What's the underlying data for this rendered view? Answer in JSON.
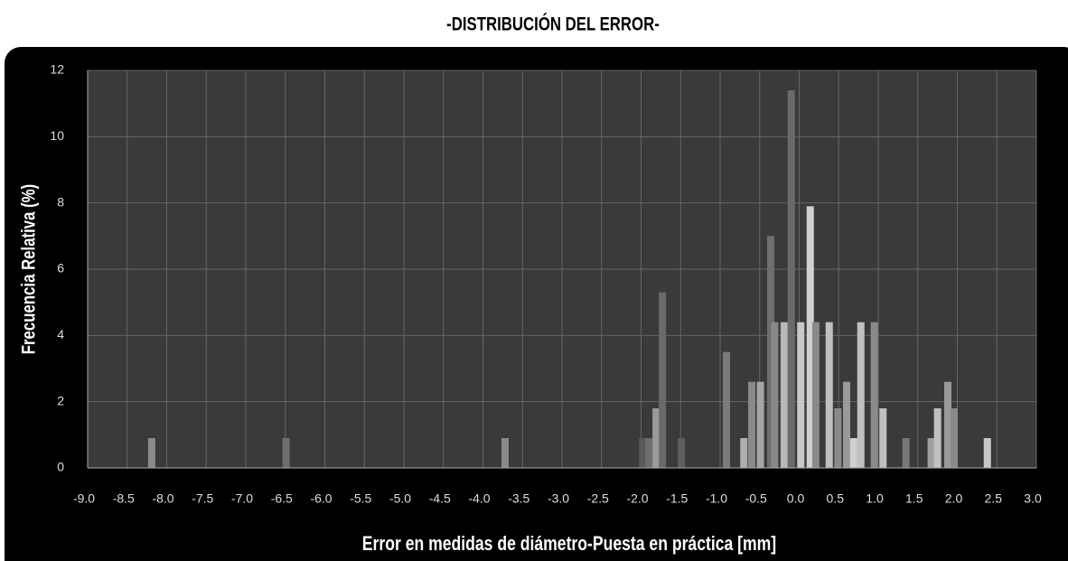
{
  "chart_data": {
    "type": "bar",
    "title": "-DISTRIBUCIÓN DEL ERROR-",
    "xlabel": "Error en medidas de diámetro-Puesta en práctica [mm]",
    "ylabel": "Frecuencia Relativa (%)",
    "x": [
      -8.19,
      -6.49,
      -3.72,
      -1.98,
      -1.9,
      -1.81,
      -1.73,
      -1.49,
      -0.92,
      -0.7,
      -0.6,
      -0.49,
      -0.36,
      -0.31,
      -0.19,
      -0.1,
      0.02,
      0.14,
      0.21,
      0.38,
      0.49,
      0.6,
      0.69,
      0.78,
      0.95,
      1.06,
      1.35,
      1.67,
      1.75,
      1.88,
      1.96,
      2.38
    ],
    "values": [
      0.9,
      0.9,
      0.9,
      0.9,
      0.9,
      1.8,
      5.3,
      0.9,
      3.5,
      0.9,
      2.6,
      2.6,
      7.0,
      4.4,
      4.4,
      11.4,
      4.4,
      7.9,
      4.4,
      4.4,
      1.8,
      2.6,
      0.9,
      4.4,
      4.4,
      1.8,
      0.9,
      0.9,
      1.8,
      2.6,
      1.8,
      0.9
    ],
    "colors": [
      "#8a8a8a",
      "#6e6e6e",
      "#8a8a8a",
      "#5a5a5a",
      "#6e6e6e",
      "#9a9a9a",
      "#6a6a6a",
      "#5f5f5f",
      "#7a7a7a",
      "#b0b0b0",
      "#8a8a8a",
      "#a5a5a5",
      "#6e6e6e",
      "#888888",
      "#b8b8b8",
      "#6a6a6a",
      "#c8c8c8",
      "#d0d0d0",
      "#8a8a8a",
      "#c0c0c0",
      "#8a8a8a",
      "#9a9a9a",
      "#d0d0d0",
      "#c0c0c0",
      "#8a8a8a",
      "#c0c0c0",
      "#777777",
      "#a0a0a0",
      "#c0c0c0",
      "#9a9a9a",
      "#8a8a8a",
      "#c8c8c8"
    ],
    "xlim": [
      -9,
      3
    ],
    "ylim": [
      0,
      12
    ],
    "xticks": [
      {
        "value": -9,
        "label": "-9.0"
      },
      -8.5,
      {
        "value": -8,
        "label": "-8.0"
      },
      -7.5,
      {
        "value": -7,
        "label": "-7.0"
      },
      -6.5,
      {
        "value": -6,
        "label": "-6.0"
      },
      -5.5,
      {
        "value": -5,
        "label": "-5.0"
      },
      -4.5,
      {
        "value": -4,
        "label": "-4.0"
      },
      -3.5,
      {
        "value": -3,
        "label": "-3.0"
      },
      -2.5,
      {
        "value": -2,
        "label": "-2.0"
      },
      -1.5,
      {
        "value": -1,
        "label": "-1.0"
      },
      -0.5,
      {
        "value": 0,
        "label": "0.0"
      },
      0.5,
      {
        "value": 1,
        "label": "1.0"
      },
      1.5,
      {
        "value": 2,
        "label": "2.0"
      },
      2.5,
      {
        "value": 3,
        "label": "3.0"
      }
    ],
    "yticks": [
      0,
      2,
      4,
      6,
      8,
      10,
      12
    ],
    "grid": true
  }
}
